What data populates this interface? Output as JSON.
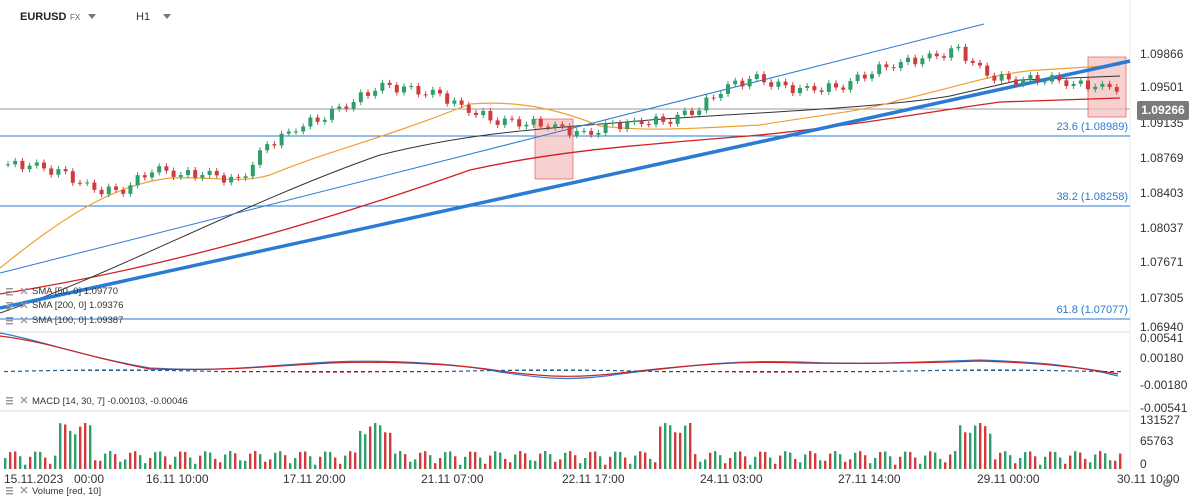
{
  "header": {
    "symbol": "EURUSD",
    "market": "FX",
    "timeframe": "H1"
  },
  "price_axis": {
    "main": [
      "1.09866",
      "1.09501",
      "1.09135",
      "1.08769",
      "1.08403",
      "1.08037",
      "1.07671",
      "1.07305",
      "1.06940"
    ],
    "macd": [
      "0.00541",
      "0.00180",
      "-0.00180",
      "-0.00541"
    ],
    "volume": [
      "131527",
      "65763",
      "0"
    ]
  },
  "current_price": "1.09266",
  "fib_levels": [
    {
      "label": "23.6 (1.08989)",
      "value": 1.08989
    },
    {
      "label": "38.2 (1.08258)",
      "value": 1.08258
    },
    {
      "label": "61.8 (1.07077)",
      "value": 1.07077
    }
  ],
  "legend": {
    "sma50": "SMA [50, 0] 1.09770",
    "sma200": "SMA [200, 0] 1.09376",
    "sma100": "SMA [100, 0] 1.09387",
    "macd": "MACD [14, 30, 7] -0.00103, -0.00046",
    "volume": "Volume [red, 10]"
  },
  "dates": [
    "15.11.2023",
    "00:00",
    "16.11 10:00",
    "17.11 20:00",
    "21.11 07:00",
    "22.11 17:00",
    "24.11 03:00",
    "27.11 14:00",
    "29.11 00:00",
    "30.11 10:00"
  ],
  "colors": {
    "bull": "#2e9e6a",
    "bear": "#d23b3b",
    "trend": "#2a7bd4",
    "sma50": "#f0a030",
    "sma100": "#d02020",
    "sma200": "#333333",
    "highlight": "#f4bcbc"
  },
  "icons": {
    "drag": "drag-handle-icon",
    "close": "close-icon",
    "settings": "gear-icon",
    "caret": "chevron-down-icon"
  }
}
